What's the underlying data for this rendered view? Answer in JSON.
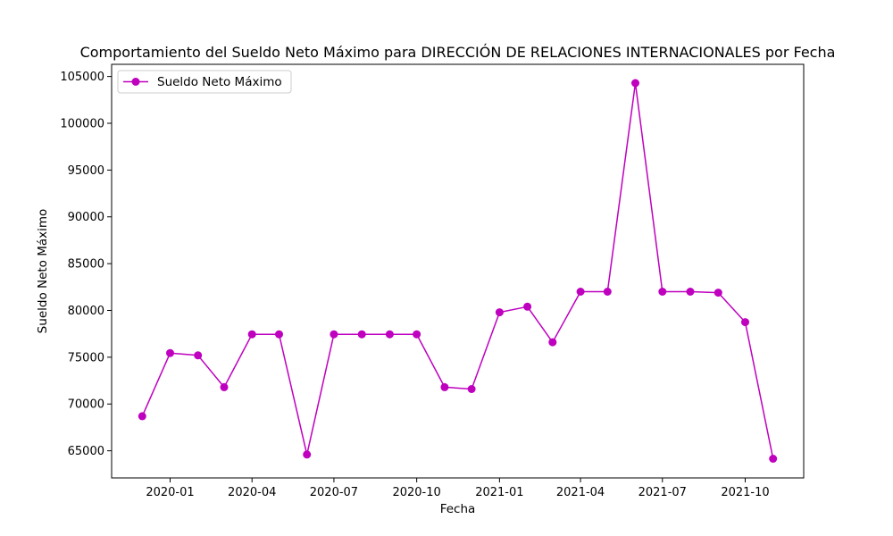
{
  "chart_data": {
    "type": "line",
    "title": "Comportamiento del Sueldo Neto Máximo para DIRECCIÓN DE RELACIONES INTERNACIONALES por Fecha",
    "xlabel": "Fecha",
    "ylabel": "Sueldo Neto Máximo",
    "x": [
      "2019-12-01",
      "2020-01-01",
      "2020-02-01",
      "2020-03-01",
      "2020-04-01",
      "2020-05-01",
      "2020-06-01",
      "2020-07-01",
      "2020-08-01",
      "2020-09-01",
      "2020-10-01",
      "2020-11-01",
      "2020-12-01",
      "2021-01-01",
      "2021-02-01",
      "2021-03-01",
      "2021-04-01",
      "2021-05-01",
      "2021-06-01",
      "2021-07-01",
      "2021-08-01",
      "2021-09-01",
      "2021-10-01",
      "2021-11-01"
    ],
    "series": [
      {
        "name": "Sueldo Neto Máximo",
        "color": "#bf00bf",
        "values": [
          68700,
          75450,
          75200,
          71800,
          77450,
          77450,
          64600,
          77450,
          77450,
          77450,
          77450,
          71800,
          71600,
          79800,
          80400,
          76600,
          82000,
          82000,
          104300,
          82000,
          82000,
          81900,
          78750,
          64150
        ]
      }
    ],
    "x_ticks": [
      {
        "date": "2020-01-01",
        "label": "2020-01"
      },
      {
        "date": "2020-04-01",
        "label": "2020-04"
      },
      {
        "date": "2020-07-01",
        "label": "2020-07"
      },
      {
        "date": "2020-10-01",
        "label": "2020-10"
      },
      {
        "date": "2021-01-01",
        "label": "2021-01"
      },
      {
        "date": "2021-04-01",
        "label": "2021-04"
      },
      {
        "date": "2021-07-01",
        "label": "2021-07"
      },
      {
        "date": "2021-10-01",
        "label": "2021-10"
      }
    ],
    "y_ticks": [
      65000,
      70000,
      75000,
      80000,
      85000,
      90000,
      95000,
      100000,
      105000
    ],
    "xlim": [
      "2019-10-28",
      "2021-12-05"
    ],
    "ylim": [
      62100,
      106300
    ],
    "grid": false,
    "legend_position": "top-left"
  }
}
